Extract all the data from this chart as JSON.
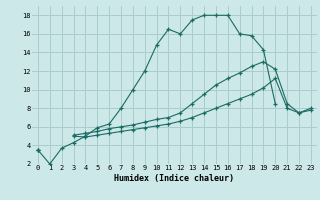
{
  "xlabel": "Humidex (Indice chaleur)",
  "bg_color": "#cce8e8",
  "grid_color": "#aacccc",
  "line_color": "#1a6b62",
  "xlim": [
    -0.5,
    23.5
  ],
  "ylim": [
    2,
    19
  ],
  "xticks": [
    0,
    1,
    2,
    3,
    4,
    5,
    6,
    7,
    8,
    9,
    10,
    11,
    12,
    13,
    14,
    15,
    16,
    17,
    18,
    19,
    20,
    21,
    22,
    23
  ],
  "yticks": [
    2,
    4,
    6,
    8,
    10,
    12,
    14,
    16,
    18
  ],
  "line1_x": [
    0,
    1,
    2,
    3,
    4,
    5,
    6,
    7,
    8,
    9,
    10,
    11,
    12,
    13,
    14,
    15,
    16,
    17,
    18,
    19,
    20,
    21,
    22,
    23
  ],
  "line1_y": [
    3.5,
    2.0,
    3.7,
    4.3,
    5.0,
    5.9,
    6.3,
    8.0,
    10.0,
    12.0,
    14.8,
    16.5,
    16.0,
    17.5,
    18.0,
    18.0,
    18.0,
    16.0,
    15.8,
    14.3,
    8.5,
    null,
    null,
    null
  ],
  "line2_x": [
    0,
    1,
    2,
    3,
    4,
    5,
    6,
    7,
    8,
    9,
    10,
    11,
    12,
    13,
    14,
    15,
    16,
    17,
    18,
    19,
    20,
    21,
    22,
    23
  ],
  "line2_y": [
    3.5,
    null,
    null,
    5.1,
    5.3,
    5.5,
    5.8,
    6.0,
    6.2,
    6.5,
    6.8,
    7.0,
    7.5,
    8.5,
    9.5,
    10.5,
    11.2,
    11.8,
    12.5,
    13.0,
    12.2,
    8.5,
    7.5,
    8.0
  ],
  "line3_x": [
    0,
    1,
    2,
    3,
    4,
    5,
    6,
    7,
    8,
    9,
    10,
    11,
    12,
    13,
    14,
    15,
    16,
    17,
    18,
    19,
    20,
    21,
    22,
    23
  ],
  "line3_y": [
    3.5,
    null,
    null,
    5.0,
    4.9,
    5.1,
    5.3,
    5.5,
    5.7,
    5.9,
    6.1,
    6.3,
    6.6,
    7.0,
    7.5,
    8.0,
    8.5,
    9.0,
    9.5,
    10.2,
    11.2,
    8.0,
    7.5,
    7.8
  ]
}
